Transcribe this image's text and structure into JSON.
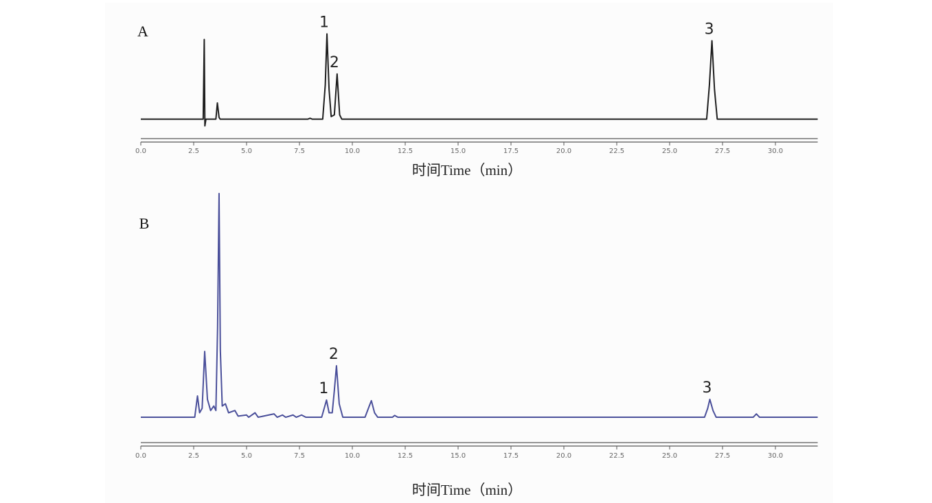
{
  "chart_data": [
    {
      "type": "line",
      "panel_label": "A",
      "xlabel": "时间Time（min）",
      "color": "#1e1e1e",
      "xlim": [
        0,
        32
      ],
      "ylim": [
        -10,
        110
      ],
      "xticks": [
        {
          "value": 0,
          "label": "0.0"
        },
        {
          "value": 2.5,
          "label": "2.5"
        },
        {
          "value": 5,
          "label": "5.0"
        },
        {
          "value": 7.5,
          "label": "7.5"
        },
        {
          "value": 10,
          "label": "10.0"
        },
        {
          "value": 12.5,
          "label": "12.5"
        },
        {
          "value": 15,
          "label": "15.0"
        },
        {
          "value": 17.5,
          "label": "17.5"
        },
        {
          "value": 20,
          "label": "20.0"
        },
        {
          "value": 22.5,
          "label": "22.5"
        },
        {
          "value": 25,
          "label": "25.0"
        },
        {
          "value": 27.5,
          "label": "27.5"
        },
        {
          "value": 30,
          "label": "30.0"
        }
      ],
      "x": [
        0,
        2.95,
        3.0,
        3.03,
        3.08,
        3.55,
        3.62,
        3.7,
        3.75,
        7.9,
        8.0,
        8.1,
        8.6,
        8.72,
        8.8,
        8.9,
        9.0,
        9.15,
        9.28,
        9.4,
        9.5,
        26.75,
        26.88,
        27.0,
        27.12,
        27.25,
        32
      ],
      "values": [
        0,
        0,
        93.5,
        -8,
        0,
        0,
        19,
        2,
        0,
        0,
        1,
        0,
        0,
        40,
        100,
        35,
        3,
        5,
        53,
        5,
        0,
        0,
        40,
        92,
        35,
        0,
        0
      ],
      "annotations": [
        {
          "text": "1",
          "x": 8.8
        },
        {
          "text": "2",
          "x": 9.28
        },
        {
          "text": "3",
          "x": 27.0
        }
      ]
    },
    {
      "type": "line",
      "panel_label": "B",
      "xlabel": "时间Time（min）",
      "color": "#4a4f9a",
      "xlim": [
        0,
        32
      ],
      "ylim": [
        -3,
        110
      ],
      "xticks": [
        {
          "value": 0,
          "label": "0.0"
        },
        {
          "value": 2.5,
          "label": "2.5"
        },
        {
          "value": 5,
          "label": "5.0"
        },
        {
          "value": 7.5,
          "label": "7.5"
        },
        {
          "value": 10,
          "label": "10.0"
        },
        {
          "value": 12.5,
          "label": "12.5"
        },
        {
          "value": 15,
          "label": "15.0"
        },
        {
          "value": 17.5,
          "label": "17.5"
        },
        {
          "value": 20,
          "label": "20.0"
        },
        {
          "value": 22.5,
          "label": "22.5"
        },
        {
          "value": 25,
          "label": "25.0"
        },
        {
          "value": 27.5,
          "label": "27.5"
        },
        {
          "value": 30,
          "label": "30.0"
        }
      ],
      "x": [
        0,
        2.55,
        2.68,
        2.78,
        2.9,
        3.02,
        3.15,
        3.3,
        3.45,
        3.55,
        3.63,
        3.7,
        3.76,
        3.85,
        4.0,
        4.15,
        4.45,
        4.6,
        5.0,
        5.1,
        5.4,
        5.55,
        6.3,
        6.45,
        6.7,
        6.85,
        7.2,
        7.35,
        7.6,
        7.8,
        8.55,
        8.7,
        8.78,
        8.9,
        9.05,
        9.15,
        9.25,
        9.38,
        9.55,
        10.6,
        10.8,
        10.9,
        11.05,
        11.2,
        11.9,
        12.0,
        12.15,
        26.65,
        26.8,
        26.9,
        27.05,
        27.2,
        28.95,
        29.1,
        29.25,
        32
      ],
      "values": [
        0,
        0,
        9.5,
        2,
        4,
        29.4,
        8,
        3,
        5,
        3,
        40,
        100,
        30,
        5,
        6,
        2,
        3,
        0.5,
        1,
        0,
        2,
        0,
        1.5,
        0,
        1,
        0,
        1,
        0,
        1,
        0,
        0,
        5,
        7.7,
        2,
        2,
        12,
        23,
        6,
        0,
        0,
        5,
        7.4,
        2,
        0,
        0,
        0.8,
        0,
        0,
        4,
        8,
        3,
        0,
        0,
        1.5,
        0,
        0
      ],
      "annotations": [
        {
          "text": "1",
          "x": 8.78
        },
        {
          "text": "2",
          "x": 9.25
        },
        {
          "text": "3",
          "x": 26.9
        }
      ]
    }
  ]
}
